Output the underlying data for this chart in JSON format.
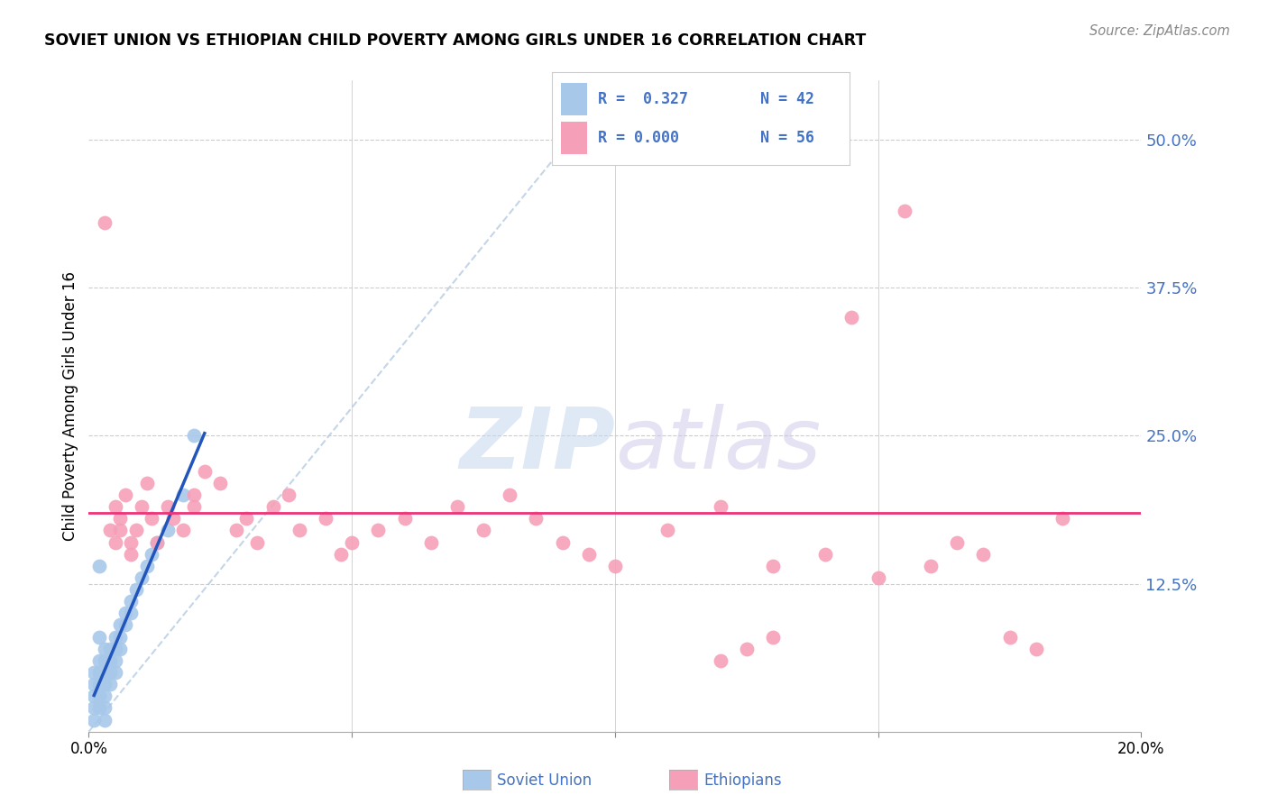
{
  "title": "SOVIET UNION VS ETHIOPIAN CHILD POVERTY AMONG GIRLS UNDER 16 CORRELATION CHART",
  "source": "Source: ZipAtlas.com",
  "ylabel": "Child Poverty Among Girls Under 16",
  "xlim": [
    0.0,
    0.2
  ],
  "ylim": [
    0.0,
    0.55
  ],
  "yticks": [
    0.0,
    0.125,
    0.25,
    0.375,
    0.5
  ],
  "ytick_labels": [
    "",
    "12.5%",
    "25.0%",
    "37.5%",
    "50.0%"
  ],
  "xticks": [
    0.0,
    0.05,
    0.1,
    0.15,
    0.2
  ],
  "xtick_labels": [
    "0.0%",
    "",
    "",
    "",
    "20.0%"
  ],
  "legend_r1": "R =  0.327",
  "legend_n1": "N = 42",
  "legend_r2": "R = 0.000",
  "legend_n2": "N = 56",
  "color_soviet": "#a8c8ea",
  "color_ethiopian": "#f5a0b8",
  "color_soviet_line": "#2255bb",
  "color_ethiopian_line": "#ee3377",
  "color_dash_line": "#b0c8e0",
  "watermark_zip": "ZIP",
  "watermark_atlas": "atlas",
  "background_color": "#ffffff",
  "soviet_x": [
    0.001,
    0.001,
    0.001,
    0.001,
    0.001,
    0.002,
    0.002,
    0.002,
    0.002,
    0.002,
    0.002,
    0.002,
    0.003,
    0.003,
    0.003,
    0.003,
    0.003,
    0.003,
    0.003,
    0.004,
    0.004,
    0.004,
    0.004,
    0.005,
    0.005,
    0.005,
    0.005,
    0.006,
    0.006,
    0.006,
    0.007,
    0.007,
    0.008,
    0.008,
    0.009,
    0.01,
    0.011,
    0.012,
    0.013,
    0.015,
    0.018,
    0.02
  ],
  "soviet_y": [
    0.05,
    0.04,
    0.03,
    0.02,
    0.01,
    0.06,
    0.05,
    0.04,
    0.03,
    0.02,
    0.14,
    0.08,
    0.07,
    0.06,
    0.05,
    0.04,
    0.03,
    0.02,
    0.01,
    0.07,
    0.06,
    0.05,
    0.04,
    0.08,
    0.07,
    0.06,
    0.05,
    0.09,
    0.08,
    0.07,
    0.1,
    0.09,
    0.11,
    0.1,
    0.12,
    0.13,
    0.14,
    0.15,
    0.16,
    0.17,
    0.2,
    0.25
  ],
  "ethiopian_x": [
    0.003,
    0.004,
    0.005,
    0.005,
    0.006,
    0.006,
    0.007,
    0.008,
    0.008,
    0.009,
    0.01,
    0.011,
    0.012,
    0.013,
    0.015,
    0.016,
    0.018,
    0.02,
    0.02,
    0.022,
    0.025,
    0.028,
    0.03,
    0.032,
    0.035,
    0.038,
    0.04,
    0.045,
    0.048,
    0.05,
    0.055,
    0.06,
    0.065,
    0.07,
    0.075,
    0.08,
    0.085,
    0.09,
    0.095,
    0.1,
    0.11,
    0.12,
    0.13,
    0.14,
    0.15,
    0.16,
    0.165,
    0.17,
    0.175,
    0.18,
    0.155,
    0.145,
    0.13,
    0.125,
    0.12,
    0.185
  ],
  "ethiopian_y": [
    0.43,
    0.17,
    0.19,
    0.16,
    0.18,
    0.17,
    0.2,
    0.16,
    0.15,
    0.17,
    0.19,
    0.21,
    0.18,
    0.16,
    0.19,
    0.18,
    0.17,
    0.2,
    0.19,
    0.22,
    0.21,
    0.17,
    0.18,
    0.16,
    0.19,
    0.2,
    0.17,
    0.18,
    0.15,
    0.16,
    0.17,
    0.18,
    0.16,
    0.19,
    0.17,
    0.2,
    0.18,
    0.16,
    0.15,
    0.14,
    0.17,
    0.19,
    0.14,
    0.15,
    0.13,
    0.14,
    0.16,
    0.15,
    0.08,
    0.07,
    0.44,
    0.35,
    0.08,
    0.07,
    0.06,
    0.18
  ],
  "gridline_y": [
    0.125,
    0.25,
    0.375,
    0.5
  ],
  "gridline_x": [
    0.05,
    0.1,
    0.15
  ]
}
